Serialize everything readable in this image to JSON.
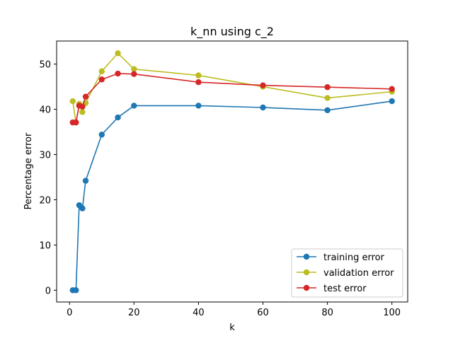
{
  "chart_data": {
    "type": "line",
    "title": "k_nn using c_2",
    "xlabel": "k",
    "ylabel": "Percentage error",
    "xlim": [
      -4,
      104.9
    ],
    "ylim": [
      -2.6,
      55.1
    ],
    "xticks": [
      0,
      20,
      40,
      60,
      80,
      100
    ],
    "yticks": [
      0,
      10,
      20,
      30,
      40,
      50
    ],
    "grid": false,
    "legend_position": "lower-right",
    "x": [
      1,
      2,
      3,
      4,
      5,
      10,
      15,
      20,
      40,
      60,
      80,
      100
    ],
    "series": [
      {
        "name": "training error",
        "color": "#1f77b4",
        "values": [
          0.0,
          0.0,
          18.8,
          18.1,
          24.2,
          34.4,
          38.2,
          40.8,
          40.8,
          40.4,
          39.8,
          41.8
        ]
      },
      {
        "name": "validation error",
        "color": "#bcbd22",
        "values": [
          41.8,
          37.1,
          41.2,
          39.4,
          41.4,
          48.4,
          52.4,
          48.9,
          47.5,
          45.0,
          42.5,
          43.9
        ]
      },
      {
        "name": "test error",
        "color": "#d62728",
        "values": [
          37.1,
          37.1,
          40.8,
          40.6,
          42.8,
          46.6,
          47.9,
          47.8,
          46.0,
          45.3,
          44.9,
          44.5
        ]
      }
    ]
  }
}
